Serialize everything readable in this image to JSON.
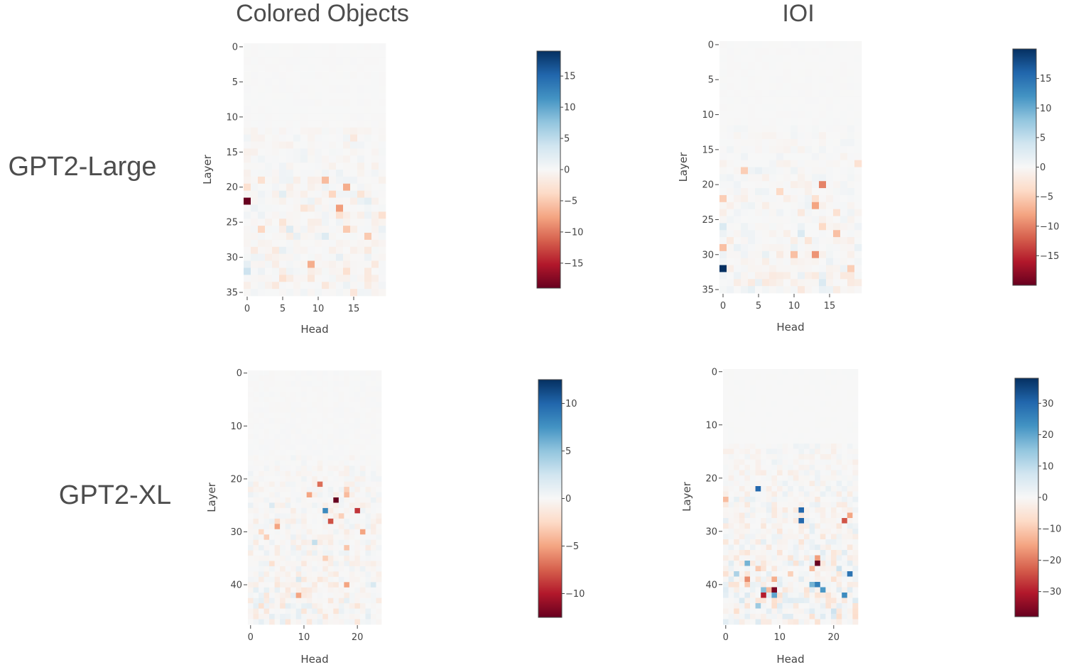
{
  "chart_data": [
    {
      "type": "heatmap",
      "id": "colored-objects-gpt2-large",
      "column_title": "Colored Objects",
      "row_label": "GPT2-Large",
      "xlabel": "Head",
      "ylabel": "Layer",
      "n_heads": 20,
      "n_layers": 36,
      "xticks": [
        0,
        5,
        10,
        15
      ],
      "yticks": [
        0,
        5,
        10,
        15,
        20,
        25,
        30,
        35
      ],
      "zrange": [
        -19,
        19
      ],
      "colorbar_ticks": [
        15,
        10,
        5,
        0,
        -5,
        -10,
        -15
      ],
      "colorbar_tick_labels": [
        "15",
        "10",
        "5",
        "0",
        "−5",
        "−10",
        "−15"
      ],
      "active_from_layer": 12,
      "noise_amplitude": 2.2,
      "cells": [
        [
          22,
          0,
          -19
        ],
        [
          23,
          13,
          -8
        ],
        [
          20,
          14,
          -7
        ],
        [
          31,
          9,
          -7
        ],
        [
          19,
          11,
          -6
        ],
        [
          26,
          14,
          -5
        ],
        [
          27,
          17,
          -5
        ],
        [
          21,
          12,
          -4
        ],
        [
          26,
          2,
          -4
        ],
        [
          19,
          2,
          -3
        ],
        [
          24,
          13,
          -3
        ],
        [
          33,
          5,
          -3
        ],
        [
          32,
          14,
          -3
        ],
        [
          24,
          19,
          -3
        ],
        [
          32,
          0,
          4
        ],
        [
          26,
          6,
          2.5
        ],
        [
          27,
          11,
          2.5
        ],
        [
          25,
          5,
          -2.5
        ],
        [
          21,
          16,
          -2.5
        ],
        [
          23,
          8,
          -2.5
        ],
        [
          22,
          17,
          2
        ],
        [
          21,
          5,
          2
        ],
        [
          13,
          15,
          -2
        ],
        [
          34,
          4,
          -2
        ],
        [
          20,
          0,
          -3
        ]
      ]
    },
    {
      "type": "heatmap",
      "id": "ioi-gpt2-large",
      "column_title": "IOI",
      "row_label": "",
      "xlabel": "Head",
      "ylabel": "Layer",
      "n_heads": 20,
      "n_layers": 36,
      "xticks": [
        0,
        5,
        10,
        15
      ],
      "yticks": [
        0,
        5,
        10,
        15,
        20,
        25,
        30,
        35
      ],
      "zrange": [
        -20,
        20
      ],
      "colorbar_ticks": [
        15,
        10,
        5,
        0,
        -5,
        -10,
        -15
      ],
      "colorbar_tick_labels": [
        "15",
        "10",
        "5",
        "0",
        "−5",
        "−10",
        "−15"
      ],
      "active_from_layer": 12,
      "noise_amplitude": 2.0,
      "cells": [
        [
          32,
          0,
          20
        ],
        [
          20,
          14,
          -10
        ],
        [
          30,
          13,
          -9
        ],
        [
          23,
          13,
          -8
        ],
        [
          27,
          16,
          -6
        ],
        [
          30,
          10,
          -6
        ],
        [
          18,
          3,
          -5
        ],
        [
          29,
          0,
          -6
        ],
        [
          22,
          0,
          -5
        ],
        [
          26,
          14,
          -4
        ],
        [
          24,
          16,
          -3
        ],
        [
          21,
          8,
          -4
        ],
        [
          32,
          18,
          -5
        ],
        [
          22,
          13,
          -3
        ],
        [
          34,
          14,
          3
        ],
        [
          27,
          11,
          3
        ],
        [
          26,
          0,
          3
        ],
        [
          17,
          19,
          -3
        ],
        [
          28,
          12,
          -2.5
        ],
        [
          34,
          6,
          -2
        ],
        [
          33,
          17,
          -2
        ],
        [
          18,
          5,
          1.5
        ],
        [
          24,
          11,
          -2
        ]
      ]
    },
    {
      "type": "heatmap",
      "id": "colored-objects-gpt2-xl",
      "column_title": "",
      "row_label": "GPT2-XL",
      "xlabel": "Head",
      "ylabel": "Layer",
      "n_heads": 25,
      "n_layers": 48,
      "xticks": [
        0,
        10,
        20
      ],
      "yticks": [
        0,
        10,
        20,
        30,
        40
      ],
      "zrange": [
        -12.5,
        12.5
      ],
      "colorbar_ticks": [
        10,
        5,
        0,
        -5,
        -10
      ],
      "colorbar_tick_labels": [
        "10",
        "5",
        "0",
        "−5",
        "−10"
      ],
      "active_from_layer": 16,
      "noise_amplitude": 1.6,
      "cells": [
        [
          24,
          16,
          -12.5
        ],
        [
          26,
          20,
          -9
        ],
        [
          28,
          15,
          -8
        ],
        [
          26,
          14,
          8
        ],
        [
          21,
          13,
          -7
        ],
        [
          23,
          11,
          -5
        ],
        [
          29,
          5,
          -5
        ],
        [
          30,
          21,
          -5
        ],
        [
          40,
          18,
          -5
        ],
        [
          42,
          9,
          -5
        ],
        [
          23,
          18,
          -4
        ],
        [
          33,
          18,
          -3.5
        ],
        [
          31,
          3,
          -3
        ],
        [
          32,
          12,
          3
        ],
        [
          39,
          9,
          2
        ],
        [
          40,
          23,
          2
        ],
        [
          27,
          17,
          -3
        ],
        [
          35,
          14,
          -3
        ],
        [
          30,
          2,
          -2.5
        ],
        [
          25,
          4,
          1.8
        ],
        [
          44,
          2,
          -2
        ],
        [
          22,
          18,
          -3
        ],
        [
          28,
          5,
          -2.5
        ],
        [
          36,
          4,
          -2
        ]
      ]
    },
    {
      "type": "heatmap",
      "id": "ioi-gpt2-xl",
      "column_title": "",
      "row_label": "",
      "xlabel": "Head",
      "ylabel": "Layer",
      "n_heads": 25,
      "n_layers": 48,
      "xticks": [
        0,
        10,
        20
      ],
      "yticks": [
        0,
        10,
        20,
        30,
        40
      ],
      "zrange": [
        -38,
        38
      ],
      "colorbar_ticks": [
        30,
        20,
        10,
        0,
        -10,
        -20,
        -30
      ],
      "colorbar_tick_labels": [
        "30",
        "20",
        "10",
        "0",
        "−10",
        "−20",
        "−30"
      ],
      "active_from_layer": 14,
      "noise_amplitude": 6.5,
      "cells": [
        [
          36,
          17,
          -38
        ],
        [
          41,
          9,
          -36
        ],
        [
          42,
          7,
          -30
        ],
        [
          22,
          6,
          30
        ],
        [
          26,
          14,
          30
        ],
        [
          28,
          14,
          30
        ],
        [
          38,
          23,
          28
        ],
        [
          40,
          17,
          26
        ],
        [
          41,
          18,
          22
        ],
        [
          42,
          22,
          24
        ],
        [
          42,
          9,
          20
        ],
        [
          28,
          22,
          -24
        ],
        [
          27,
          23,
          -15
        ],
        [
          36,
          4,
          18
        ],
        [
          40,
          16,
          18
        ],
        [
          41,
          7,
          16
        ],
        [
          38,
          2,
          12
        ],
        [
          35,
          17,
          -16
        ],
        [
          39,
          9,
          -14
        ],
        [
          41,
          8,
          -12
        ],
        [
          39,
          4,
          -18
        ],
        [
          37,
          16,
          -12
        ],
        [
          24,
          0,
          -12
        ],
        [
          37,
          6,
          -10
        ],
        [
          38,
          12,
          -9
        ],
        [
          40,
          4,
          -10
        ],
        [
          37,
          21,
          8
        ],
        [
          44,
          6,
          14
        ],
        [
          45,
          20,
          8
        ],
        [
          43,
          3,
          6
        ]
      ]
    }
  ]
}
